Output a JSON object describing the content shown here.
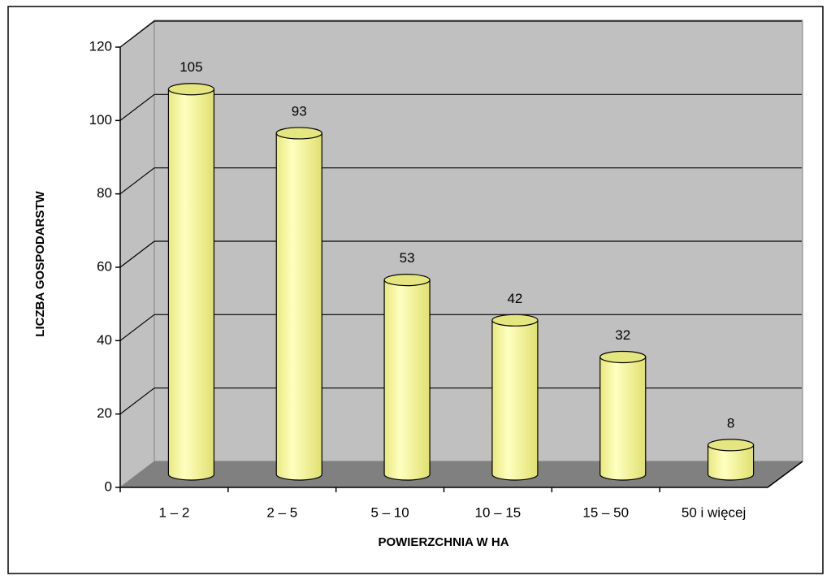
{
  "chart_data": {
    "type": "bar",
    "title": null,
    "x_label": "POWIERZCHNIA W HA",
    "y_label": "LICZBA GOSPODARSTW",
    "categories": [
      "1 – 2",
      "2 – 5",
      "5 – 10",
      "10 – 15",
      "15 – 50",
      "50 i więcej"
    ],
    "values": [
      105,
      93,
      53,
      42,
      32,
      8
    ],
    "color": "#ffff99",
    "ylim": [
      0,
      120
    ],
    "yticks": [
      0,
      20,
      40,
      60,
      80,
      100,
      120
    ],
    "grid": true
  }
}
